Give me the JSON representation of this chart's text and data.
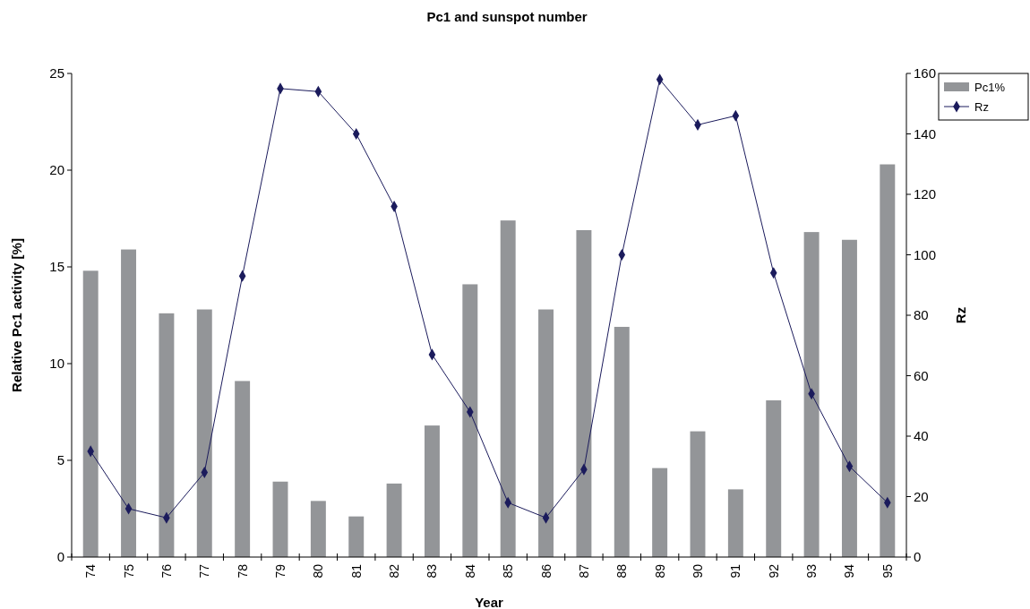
{
  "chart_data": {
    "type": "bar",
    "title": "Pc1 and sunspot number",
    "xlabel": "Year",
    "ylabel": "Relative Pc1 activity [%]",
    "y2label": "Rz",
    "categories": [
      "74",
      "75",
      "76",
      "77",
      "78",
      "79",
      "80",
      "81",
      "82",
      "83",
      "84",
      "85",
      "86",
      "87",
      "88",
      "89",
      "90",
      "91",
      "92",
      "93",
      "94",
      "95"
    ],
    "series": [
      {
        "name": "Pc1%",
        "color": "#939598",
        "values": [
          14.8,
          15.9,
          12.6,
          12.8,
          9.1,
          3.9,
          2.9,
          2.1,
          3.8,
          6.8,
          14.1,
          17.4,
          12.8,
          16.9,
          11.9,
          4.6,
          6.5,
          3.5,
          8.1,
          16.8,
          16.4,
          20.3
        ]
      },
      {
        "name": "Rz",
        "type": "line",
        "axis": "y2",
        "color": "#1b1b5c",
        "values": [
          35,
          16,
          13,
          28,
          93,
          155,
          154,
          140,
          116,
          67,
          48,
          18,
          13,
          29,
          100,
          158,
          143,
          146,
          94,
          54,
          30,
          18
        ]
      }
    ],
    "ylim": [
      0,
      25
    ],
    "yticks": [
      0,
      5,
      10,
      15,
      20,
      25
    ],
    "y2lim": [
      0,
      160
    ],
    "y2ticks": [
      0,
      20,
      40,
      60,
      80,
      100,
      120,
      140,
      160
    ],
    "marker": "diamond",
    "legend": "top right",
    "grid": false
  }
}
